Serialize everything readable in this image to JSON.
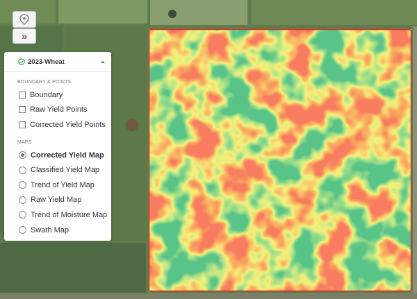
{
  "toolbar": {
    "expand_label": "»"
  },
  "panel": {
    "title": "2023-Wheat",
    "sections": [
      {
        "heading": "BOUNDARY & POINTS",
        "kind": "checkbox",
        "items": [
          {
            "label": "Boundary",
            "checked": false
          },
          {
            "label": "Raw Yield Points",
            "checked": false
          },
          {
            "label": "Corrected Yield Points",
            "checked": false
          }
        ]
      },
      {
        "heading": "MAPS",
        "kind": "radio",
        "items": [
          {
            "label": "Corrected Yield Map",
            "selected": true
          },
          {
            "label": "Classified Yield Map",
            "selected": false
          },
          {
            "label": "Trend of Yield Map",
            "selected": false
          },
          {
            "label": "Raw Yield Map",
            "selected": false
          },
          {
            "label": "Trend of Moisture Map",
            "selected": false
          },
          {
            "label": "Swath Map",
            "selected": false
          }
        ]
      }
    ]
  }
}
